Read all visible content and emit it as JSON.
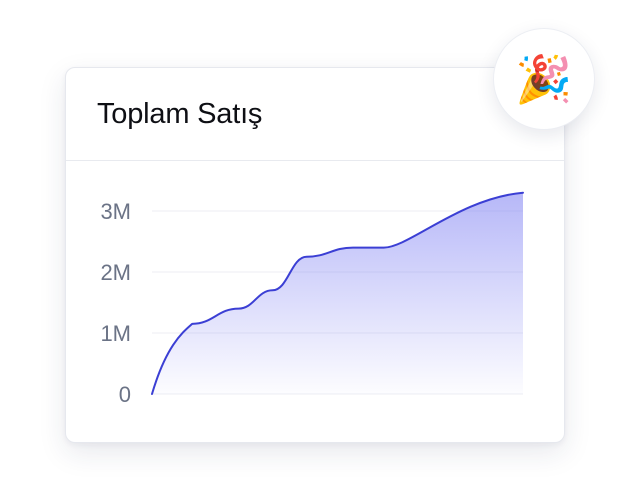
{
  "card": {
    "title": "Toplam Satış"
  },
  "badge": {
    "icon": "party-popper-icon",
    "glyph": "🎉"
  },
  "colors": {
    "line": "#3b3fd4",
    "fill": "#7b7df2",
    "grid": "#eceef3",
    "tick_text": "#6b7386"
  },
  "chart_data": {
    "type": "area",
    "title": "Toplam Satış",
    "xlabel": "",
    "ylabel": "",
    "ylim": [
      0,
      3000000
    ],
    "yticks": [
      0,
      1000000,
      2000000,
      3000000
    ],
    "ytick_labels": [
      "0",
      "1M",
      "2M",
      "3M"
    ],
    "xlim": [
      0,
      12
    ],
    "grid": true,
    "series": [
      {
        "x": [
          0,
          1.3,
          2.8,
          3.9,
          5.0,
          6.5,
          7.5,
          12.0
        ],
        "values": [
          0,
          1150000,
          1400000,
          1700000,
          2250000,
          2400000,
          2400000,
          3300000
        ]
      }
    ]
  }
}
